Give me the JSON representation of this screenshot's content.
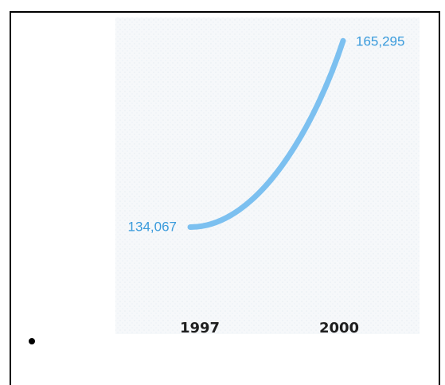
{
  "chart_data": {
    "type": "line",
    "title": "",
    "xlabel": "",
    "ylabel": "",
    "categories": [
      "1997",
      "2000"
    ],
    "series": [
      {
        "values": [
          134067,
          165295
        ]
      }
    ],
    "data_labels": [
      "134,067",
      "165,295"
    ],
    "ylim": [
      120000,
      170000
    ],
    "grid": false,
    "colors": {
      "line": "#7cc0f0",
      "data_label": "#3a9bdc",
      "tick_label": "#1f1f1f",
      "panel": "#f3f6f8"
    }
  }
}
